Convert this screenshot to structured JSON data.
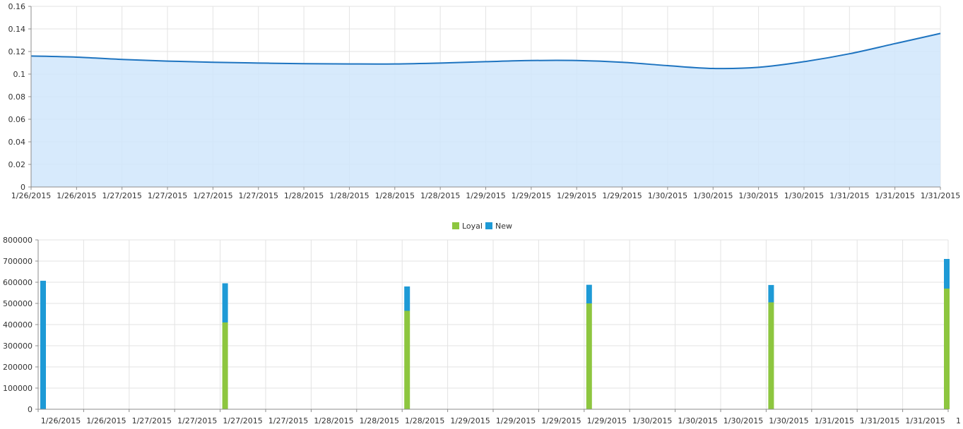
{
  "chart_data": [
    {
      "type": "area",
      "ylim": [
        0,
        0.16
      ],
      "y_ticks": [
        "0",
        "0.02",
        "0.04",
        "0.06",
        "0.08",
        "0.1",
        "0.12",
        "0.14",
        "0.16"
      ],
      "x_tick_labels": [
        "1/26/2015",
        "1/26/2015",
        "1/27/2015",
        "1/27/2015",
        "1/27/2015",
        "1/27/2015",
        "1/28/2015",
        "1/28/2015",
        "1/28/2015",
        "1/28/2015",
        "1/29/2015",
        "1/29/2015",
        "1/29/2015",
        "1/29/2015",
        "1/30/2015",
        "1/30/2015",
        "1/30/2015",
        "1/30/2015",
        "1/31/2015",
        "1/31/2015",
        "1/31/2015"
      ],
      "x": [
        "1/26/2015",
        "1/26/2015",
        "1/27/2015",
        "1/27/2015",
        "1/27/2015",
        "1/27/2015",
        "1/28/2015",
        "1/28/2015",
        "1/28/2015",
        "1/28/2015",
        "1/29/2015",
        "1/29/2015",
        "1/29/2015",
        "1/29/2015",
        "1/30/2015",
        "1/30/2015",
        "1/30/2015",
        "1/30/2015",
        "1/31/2015",
        "1/31/2015",
        "1/31/2015"
      ],
      "values": [
        0.116,
        0.115,
        0.113,
        0.1115,
        0.1105,
        0.1098,
        0.1092,
        0.109,
        0.109,
        0.1098,
        0.111,
        0.112,
        0.112,
        0.1105,
        0.1075,
        0.105,
        0.106,
        0.111,
        0.118,
        0.127,
        0.136
      ],
      "grid": true,
      "colors": {
        "line": "#1e74c0",
        "fill": "#d0e6fb",
        "grid": "#e3e3e3",
        "axis": "#8c8c8c"
      }
    },
    {
      "type": "bar",
      "stacked": true,
      "ylim": [
        0,
        800000
      ],
      "y_ticks": [
        "0",
        "100000",
        "200000",
        "300000",
        "400000",
        "500000",
        "600000",
        "700000",
        "800000"
      ],
      "x_tick_labels": [
        "1/26/2015",
        "1/26/2015",
        "1/27/2015",
        "1/27/2015",
        "1/27/2015",
        "1/27/2015",
        "1/28/2015",
        "1/28/2015",
        "1/28/2015",
        "1/29/2015",
        "1/29/2015",
        "1/29/2015",
        "1/29/2015",
        "1/30/2015",
        "1/30/2015",
        "1/30/2015",
        "1/30/2015",
        "1/31/2015",
        "1/31/2015",
        "1/31/2015",
        "1"
      ],
      "categories": [
        "1/26/2015",
        "1/27/2015",
        "1/28/2015",
        "1/29/2015",
        "1/30/2015",
        "1/31/2015"
      ],
      "series": [
        {
          "name": "Loyal",
          "color": "#8dc63f",
          "values": [
            0,
            410000,
            465000,
            500000,
            505000,
            570000
          ]
        },
        {
          "name": "New",
          "color": "#1e9ad6",
          "values": [
            607000,
            185000,
            115000,
            88000,
            82000,
            140000
          ]
        }
      ],
      "legend": {
        "position": "top-center",
        "items": [
          "Loyal",
          "New"
        ]
      },
      "grid": true
    }
  ]
}
